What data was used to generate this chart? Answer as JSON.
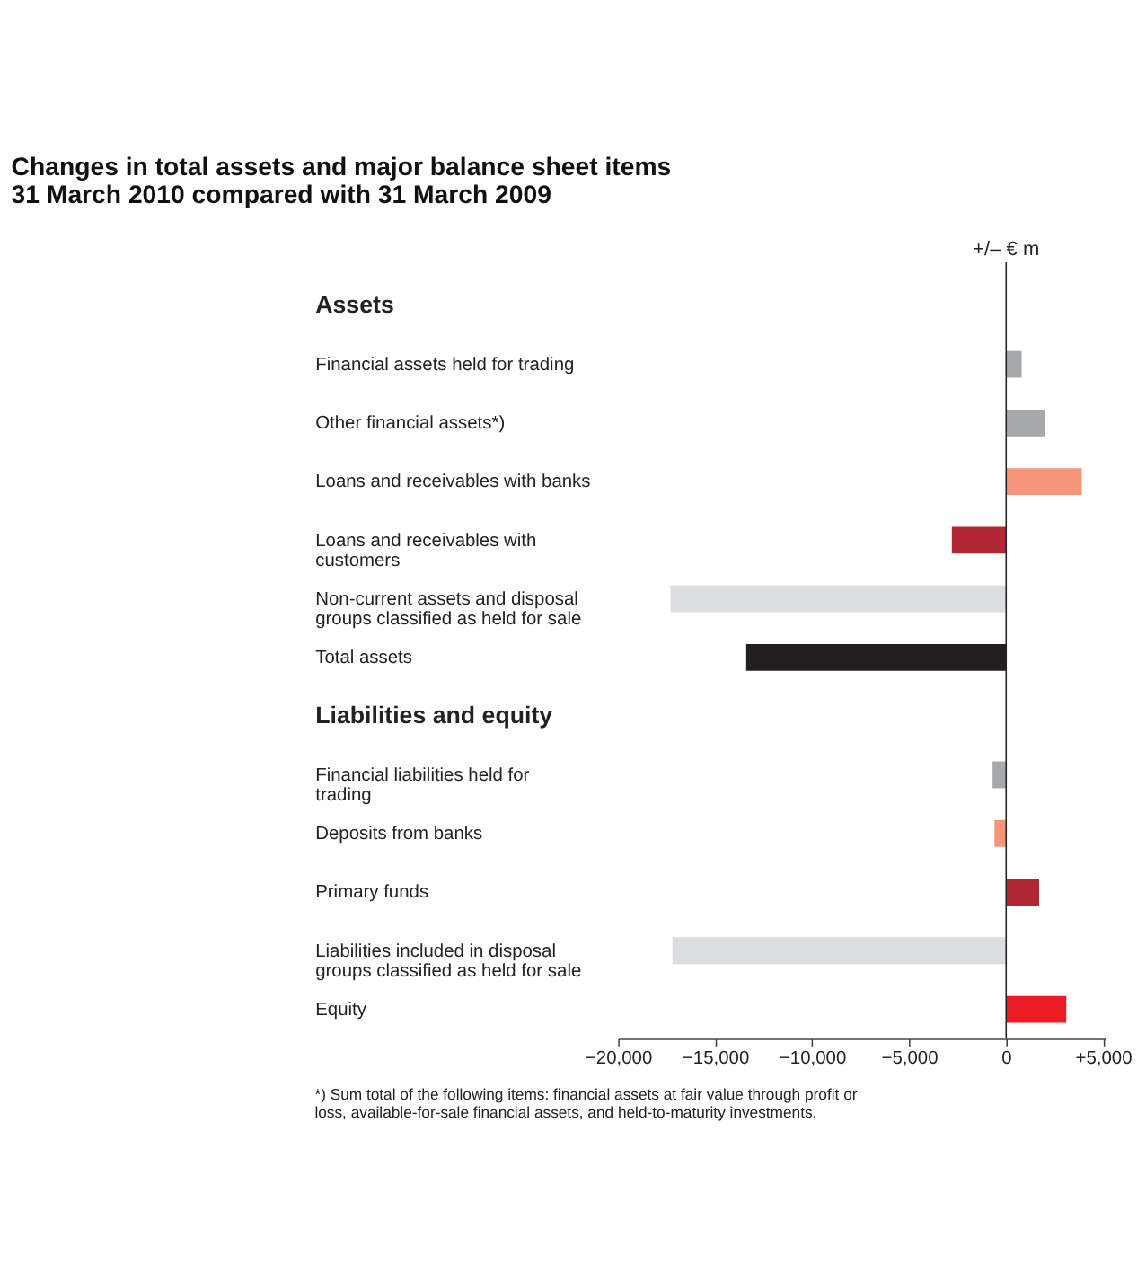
{
  "chart_data": {
    "type": "bar",
    "orientation": "horizontal",
    "title": "Changes in total assets and major balance sheet items\n31 March 2010 compared with 31 March 2009",
    "xlabel": "+/– € m",
    "categories": [
      "Assets",
      "Financial assets held for trading",
      "Other financial assets*)",
      "Loans and receivables with banks",
      "Loans and receivables with customers",
      "Non-current assets and disposal groups classified as held for sale",
      "Total assets",
      "Liabilities and equity",
      "Financial liabilities held for trading",
      "Deposits from banks",
      "Primary funds",
      "Liabilities included in disposal groups classified as held for sale",
      "Equity"
    ],
    "values": [
      null,
      800,
      2000,
      3900,
      -2800,
      -17300,
      -13400,
      null,
      -700,
      -600,
      1700,
      -17200,
      3100
    ],
    "colors": [
      null,
      "#a7a8aa",
      "#a7a8aa",
      "#f5967a",
      "#b22735",
      "#dcdddf",
      "#231f20",
      null,
      "#a7a8aa",
      "#f5967a",
      "#b22735",
      "#dcdddf",
      "#ed1c24"
    ],
    "xlim": [
      -20000,
      5100
    ],
    "xticks": [
      {
        "value": -20000,
        "label": "−20,000"
      },
      {
        "value": -15000,
        "label": "−15,000"
      },
      {
        "value": -10000,
        "label": "−10,000"
      },
      {
        "value": -5000,
        "label": "−5,000"
      },
      0,
      {
        "value": 5000,
        "label": "+5,000"
      }
    ],
    "grid": false,
    "ref_lines": [
      {
        "axis": "x",
        "value": 0,
        "color": "#222222"
      }
    ],
    "annotations": [
      "*) Sum total of the following items: financial assets at fair value through profit or loss, available-for-sale financial assets, and held-to-maturity investments."
    ]
  }
}
